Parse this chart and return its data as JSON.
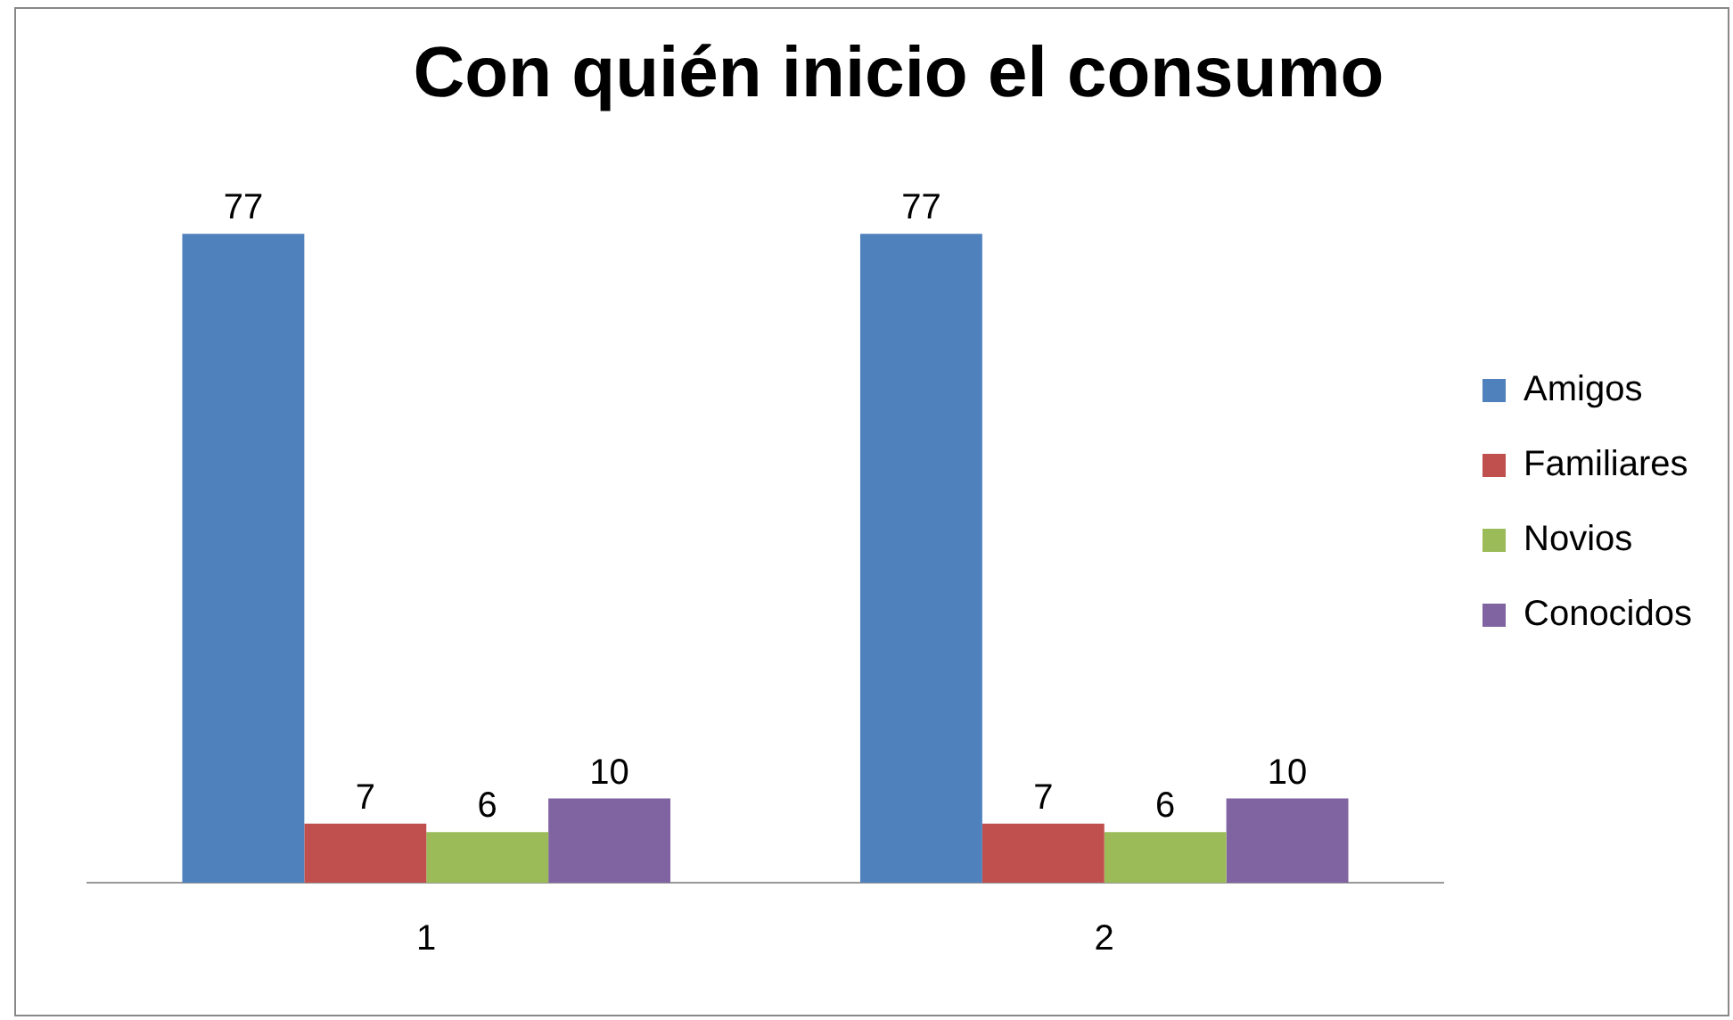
{
  "chart_data": {
    "type": "bar",
    "title": "Con quién inicio el consumo",
    "categories": [
      "1",
      "2"
    ],
    "series": [
      {
        "name": "Amigos",
        "color": "#4f81bd",
        "values": [
          77,
          77
        ]
      },
      {
        "name": "Familiares",
        "color": "#c0504d",
        "values": [
          7,
          7
        ]
      },
      {
        "name": "Novios",
        "color": "#9bbb59",
        "values": [
          6,
          6
        ]
      },
      {
        "name": "Conocidos",
        "color": "#8064a2",
        "values": [
          10,
          10
        ]
      }
    ],
    "data_labels": true,
    "legend": "right",
    "grid": false
  }
}
